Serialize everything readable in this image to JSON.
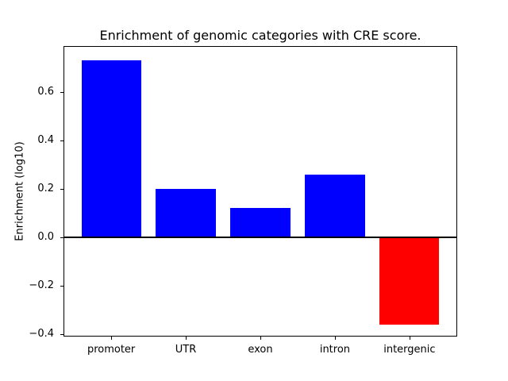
{
  "figure": {
    "background_color": "#ffffff",
    "title": "Enrichment of genomic categories with CRE score.",
    "ylabel": "Enrichment (log10)"
  },
  "chart_data": {
    "type": "bar",
    "title": "Enrichment of genomic categories with CRE score.",
    "xlabel": "",
    "ylabel": "Enrichment (log10)",
    "categories": [
      "promoter",
      "UTR",
      "exon",
      "intron",
      "intergenic"
    ],
    "values": [
      0.73,
      0.2,
      0.12,
      0.26,
      -0.36
    ],
    "bar_colors": [
      "#0000ff",
      "#0000ff",
      "#0000ff",
      "#0000ff",
      "#ff0000"
    ],
    "positive_color": "#0000ff",
    "negative_color": "#ff0000",
    "ylim": [
      -0.41,
      0.79
    ],
    "yticks": [
      0.6,
      0.4,
      0.2,
      0.0,
      -0.2,
      -0.4
    ],
    "ytick_labels": [
      "0.6",
      "0.4",
      "0.2",
      "0.0",
      "−0.2",
      "−0.4"
    ],
    "bar_width_fraction": 0.8,
    "grid": false,
    "legend": null,
    "zero_line": true,
    "axis_color": "#000000"
  }
}
